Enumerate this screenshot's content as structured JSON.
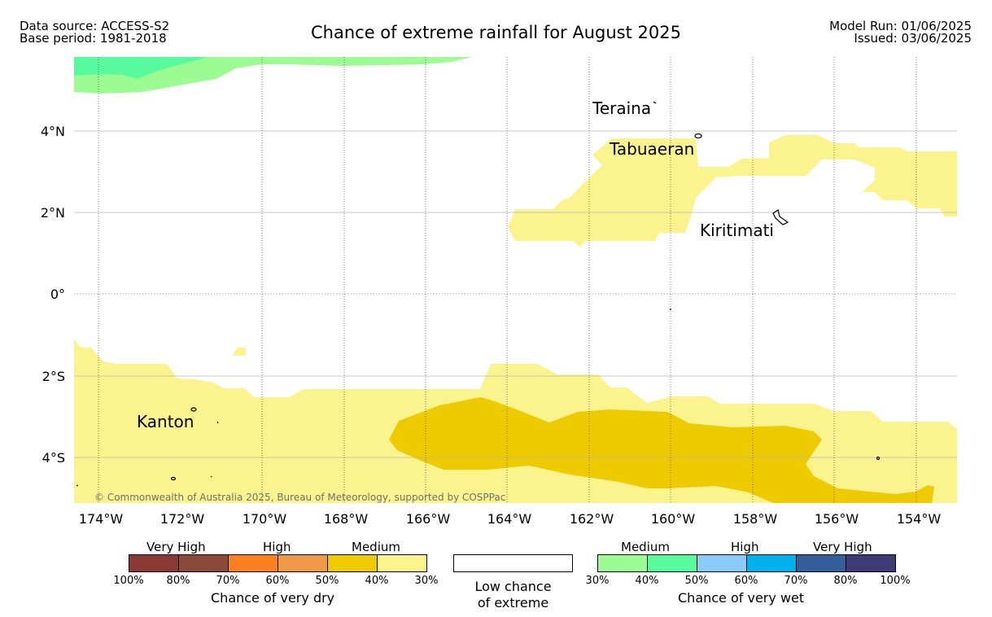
{
  "header": {
    "source": "Data source: ACCESS-S2",
    "base_period": "Base period: 1981-2018",
    "title": "Chance of extreme rainfall for August 2025",
    "model_run": "Model Run: 01/06/2025",
    "issued": "Issued: 03/06/2025"
  },
  "map": {
    "lon_labels": [
      "174°W",
      "172°W",
      "170°W",
      "168°W",
      "166°W",
      "164°W",
      "162°W",
      "160°W",
      "158°W",
      "156°W",
      "154°W"
    ],
    "lat_labels": [
      "4°N",
      "2°N",
      "0°",
      "2°S",
      "4°S"
    ],
    "places": [
      {
        "name": "Teraina"
      },
      {
        "name": "Tabuaeran"
      },
      {
        "name": "Kiritimati"
      },
      {
        "name": "Kanton"
      }
    ],
    "copyright": "© Commonwealth of Australia 2025, Bureau of Meteorology, supported by COSPPac"
  },
  "legend": {
    "dry": {
      "title": "Chance of very dry",
      "groups": [
        "Very High",
        "High",
        "Medium"
      ],
      "colors": [
        "#8b3a33",
        "#8a4a3a",
        "#fd8020",
        "#ef9a48",
        "#eecb00",
        "#fbf38e"
      ],
      "ticks": [
        "100%",
        "80%",
        "70%",
        "60%",
        "50%",
        "40%",
        "30%"
      ]
    },
    "neutral": {
      "line1": "Low chance",
      "line2": "of extreme",
      "color": "#ffffff"
    },
    "wet": {
      "title": "Chance of very wet",
      "groups": [
        "Medium",
        "High",
        "Very High"
      ],
      "colors": [
        "#9dfb93",
        "#57fb9e",
        "#8acbfa",
        "#00b0ea",
        "#335e9a",
        "#3d3a77"
      ],
      "ticks": [
        "30%",
        "40%",
        "50%",
        "60%",
        "70%",
        "80%",
        "100%"
      ]
    }
  }
}
